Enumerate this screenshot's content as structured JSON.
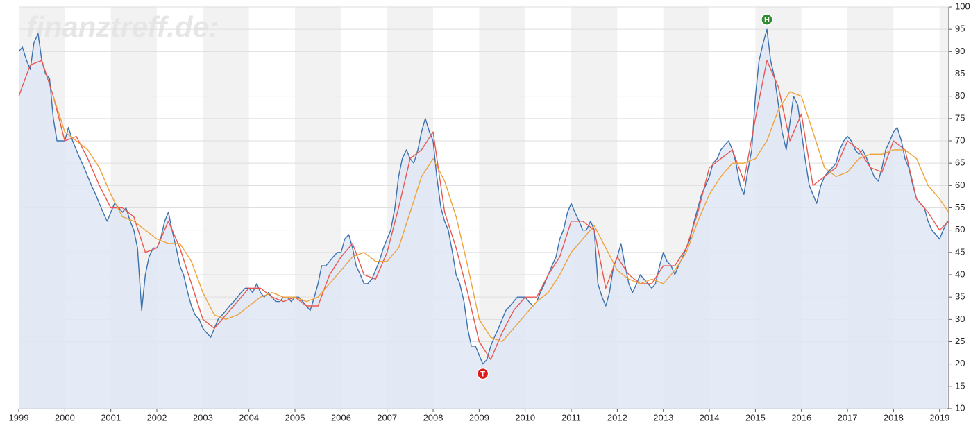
{
  "chart_data": {
    "type": "line",
    "watermark": "finanztreff.de:",
    "xlim": [
      1999,
      2019.2
    ],
    "ylim": [
      10,
      100
    ],
    "xticks": [
      1999,
      2000,
      2001,
      2002,
      2003,
      2004,
      2005,
      2006,
      2007,
      2008,
      2009,
      2010,
      2011,
      2012,
      2013,
      2014,
      2015,
      2016,
      2017,
      2018,
      2019
    ],
    "yticks": [
      10,
      15,
      20,
      25,
      30,
      35,
      40,
      45,
      50,
      55,
      60,
      65,
      70,
      75,
      80,
      85,
      90,
      95,
      100
    ],
    "grid": true,
    "year_bands": true,
    "area_fill": "#dfe8f4",
    "series": [
      {
        "color": "#3b72ad",
        "area": true,
        "x": [
          1999,
          1999.08,
          1999.17,
          1999.25,
          1999.33,
          1999.42,
          1999.5,
          1999.58,
          1999.67,
          1999.75,
          1999.83,
          1999.92,
          2000,
          2000.08,
          2000.17,
          2000.25,
          2000.33,
          2000.42,
          2000.5,
          2000.58,
          2000.67,
          2000.75,
          2000.83,
          2000.92,
          2001,
          2001.08,
          2001.17,
          2001.25,
          2001.33,
          2001.42,
          2001.5,
          2001.58,
          2001.67,
          2001.75,
          2001.83,
          2001.92,
          2002,
          2002.08,
          2002.17,
          2002.25,
          2002.33,
          2002.42,
          2002.5,
          2002.58,
          2002.67,
          2002.75,
          2002.83,
          2002.92,
          2003,
          2003.08,
          2003.17,
          2003.25,
          2003.33,
          2003.42,
          2003.5,
          2003.58,
          2003.67,
          2003.75,
          2003.83,
          2003.92,
          2004,
          2004.08,
          2004.17,
          2004.25,
          2004.33,
          2004.42,
          2004.5,
          2004.58,
          2004.67,
          2004.75,
          2004.83,
          2004.92,
          2005,
          2005.08,
          2005.17,
          2005.25,
          2005.33,
          2005.42,
          2005.5,
          2005.58,
          2005.67,
          2005.75,
          2005.83,
          2005.92,
          2006,
          2006.08,
          2006.17,
          2006.25,
          2006.33,
          2006.42,
          2006.5,
          2006.58,
          2006.67,
          2006.75,
          2006.83,
          2006.92,
          2007,
          2007.08,
          2007.17,
          2007.25,
          2007.33,
          2007.42,
          2007.5,
          2007.58,
          2007.67,
          2007.75,
          2007.83,
          2007.92,
          2008,
          2008.08,
          2008.17,
          2008.25,
          2008.33,
          2008.42,
          2008.5,
          2008.58,
          2008.67,
          2008.75,
          2008.83,
          2008.92,
          2009,
          2009.08,
          2009.17,
          2009.25,
          2009.33,
          2009.42,
          2009.5,
          2009.58,
          2009.67,
          2009.75,
          2009.83,
          2009.92,
          2010,
          2010.08,
          2010.17,
          2010.25,
          2010.33,
          2010.42,
          2010.5,
          2010.58,
          2010.67,
          2010.75,
          2010.83,
          2010.92,
          2011,
          2011.08,
          2011.17,
          2011.25,
          2011.33,
          2011.42,
          2011.5,
          2011.58,
          2011.67,
          2011.75,
          2011.83,
          2011.92,
          2012,
          2012.08,
          2012.17,
          2012.25,
          2012.33,
          2012.42,
          2012.5,
          2012.58,
          2012.67,
          2012.75,
          2012.83,
          2012.92,
          2013,
          2013.08,
          2013.17,
          2013.25,
          2013.33,
          2013.42,
          2013.5,
          2013.58,
          2013.67,
          2013.75,
          2013.83,
          2013.92,
          2014,
          2014.08,
          2014.17,
          2014.25,
          2014.33,
          2014.42,
          2014.5,
          2014.58,
          2014.67,
          2014.75,
          2014.83,
          2014.92,
          2015,
          2015.08,
          2015.17,
          2015.25,
          2015.33,
          2015.42,
          2015.5,
          2015.58,
          2015.67,
          2015.75,
          2015.83,
          2015.92,
          2016,
          2016.08,
          2016.17,
          2016.25,
          2016.33,
          2016.42,
          2016.5,
          2016.58,
          2016.67,
          2016.75,
          2016.83,
          2016.92,
          2017,
          2017.08,
          2017.17,
          2017.25,
          2017.33,
          2017.42,
          2017.5,
          2017.58,
          2017.67,
          2017.75,
          2017.83,
          2017.92,
          2018,
          2018.08,
          2018.17,
          2018.25,
          2018.33,
          2018.42,
          2018.5,
          2018.58,
          2018.67,
          2018.75,
          2018.83,
          2018.92,
          2019,
          2019.08,
          2019.17
        ],
        "values": [
          90,
          91,
          88,
          86,
          92,
          94,
          88,
          85,
          84,
          75,
          70,
          70,
          70,
          73,
          70,
          68,
          66,
          64,
          62,
          60,
          58,
          56,
          54,
          52,
          54,
          56,
          55,
          54,
          55,
          52,
          50,
          46,
          32,
          40,
          44,
          46,
          46,
          48,
          52,
          54,
          50,
          46,
          42,
          40,
          36,
          33,
          31,
          30,
          28,
          27,
          26,
          28,
          30,
          31,
          32,
          33,
          34,
          35,
          36,
          37,
          37,
          36,
          38,
          36,
          35,
          36,
          35,
          34,
          34,
          35,
          35,
          34,
          35,
          35,
          34,
          33,
          32,
          35,
          38,
          42,
          42,
          43,
          44,
          45,
          45,
          48,
          49,
          46,
          42,
          40,
          38,
          38,
          39,
          41,
          43,
          46,
          48,
          50,
          55,
          62,
          66,
          68,
          66,
          65,
          68,
          72,
          75,
          72,
          70,
          62,
          55,
          52,
          50,
          45,
          40,
          38,
          34,
          28,
          24,
          24,
          22,
          20,
          21,
          24,
          26,
          28,
          30,
          32,
          33,
          34,
          35,
          35,
          35,
          34,
          33,
          34,
          36,
          38,
          40,
          42,
          44,
          48,
          50,
          54,
          56,
          54,
          52,
          50,
          50,
          52,
          50,
          38,
          35,
          33,
          36,
          42,
          44,
          47,
          42,
          38,
          36,
          38,
          40,
          39,
          38,
          37,
          38,
          42,
          45,
          43,
          42,
          40,
          42,
          44,
          46,
          48,
          52,
          55,
          58,
          60,
          62,
          65,
          66,
          68,
          69,
          70,
          68,
          65,
          60,
          58,
          63,
          68,
          80,
          88,
          92,
          95,
          88,
          84,
          78,
          72,
          68,
          74,
          80,
          78,
          72,
          66,
          60,
          58,
          56,
          60,
          62,
          63,
          64,
          65,
          68,
          70,
          71,
          70,
          68,
          67,
          68,
          66,
          64,
          62,
          61,
          64,
          68,
          70,
          72,
          73,
          70,
          66,
          64,
          60,
          57,
          56,
          55,
          52,
          50,
          49,
          48,
          50,
          52
        ]
      },
      {
        "color": "#e8574f",
        "x": [
          1999,
          1999.25,
          1999.5,
          1999.75,
          2000,
          2000.25,
          2000.5,
          2000.75,
          2001,
          2001.25,
          2001.5,
          2001.75,
          2002,
          2002.25,
          2002.5,
          2002.75,
          2003,
          2003.25,
          2003.5,
          2003.75,
          2004,
          2004.25,
          2004.5,
          2004.75,
          2005,
          2005.25,
          2005.5,
          2005.75,
          2006,
          2006.25,
          2006.5,
          2006.75,
          2007,
          2007.25,
          2007.5,
          2007.75,
          2008,
          2008.25,
          2008.5,
          2008.75,
          2009,
          2009.25,
          2009.5,
          2009.75,
          2010,
          2010.25,
          2010.5,
          2010.75,
          2011,
          2011.25,
          2011.5,
          2011.75,
          2012,
          2012.25,
          2012.5,
          2012.75,
          2013,
          2013.25,
          2013.5,
          2013.75,
          2014,
          2014.25,
          2014.5,
          2014.75,
          2015,
          2015.25,
          2015.5,
          2015.75,
          2016,
          2016.25,
          2016.5,
          2016.75,
          2017,
          2017.25,
          2017.5,
          2017.75,
          2018,
          2018.25,
          2018.5,
          2018.75,
          2019,
          2019.2
        ],
        "values": [
          80,
          87,
          88,
          80,
          70,
          71,
          66,
          60,
          55,
          55,
          53,
          45,
          46,
          52,
          46,
          38,
          30,
          28,
          31,
          34,
          37,
          37,
          35,
          34,
          35,
          33,
          33,
          40,
          44,
          47,
          40,
          39,
          45,
          55,
          66,
          68,
          72,
          54,
          46,
          36,
          25,
          21,
          27,
          32,
          35,
          35,
          40,
          44,
          52,
          52,
          50,
          37,
          44,
          40,
          38,
          38,
          42,
          42,
          46,
          54,
          64,
          66,
          68,
          61,
          75,
          88,
          82,
          70,
          76,
          60,
          62,
          64,
          70,
          68,
          64,
          63,
          70,
          68,
          57,
          54,
          50,
          52
        ]
      },
      {
        "color": "#f0a23a",
        "x": [
          1999.75,
          2000,
          2000.25,
          2000.5,
          2000.75,
          2001,
          2001.25,
          2001.5,
          2001.75,
          2002,
          2002.25,
          2002.5,
          2002.75,
          2003,
          2003.25,
          2003.5,
          2003.75,
          2004,
          2004.25,
          2004.5,
          2004.75,
          2005,
          2005.25,
          2005.5,
          2005.75,
          2006,
          2006.25,
          2006.5,
          2006.75,
          2007,
          2007.25,
          2007.5,
          2007.75,
          2008,
          2008.25,
          2008.5,
          2008.75,
          2009,
          2009.25,
          2009.5,
          2009.75,
          2010,
          2010.25,
          2010.5,
          2010.75,
          2011,
          2011.25,
          2011.5,
          2011.75,
          2012,
          2012.25,
          2012.5,
          2012.75,
          2013,
          2013.25,
          2013.5,
          2013.75,
          2014,
          2014.25,
          2014.5,
          2014.75,
          2015,
          2015.25,
          2015.5,
          2015.75,
          2016,
          2016.25,
          2016.5,
          2016.75,
          2017,
          2017.25,
          2017.5,
          2017.75,
          2018,
          2018.25,
          2018.5,
          2018.75,
          2019,
          2019.2
        ],
        "values": [
          80,
          72,
          70,
          68,
          64,
          58,
          53,
          52,
          50,
          48,
          47,
          47,
          43,
          36,
          31,
          30,
          31,
          33,
          35,
          36,
          35,
          35,
          34,
          35,
          38,
          41,
          44,
          45,
          43,
          43,
          46,
          54,
          62,
          66,
          61,
          53,
          42,
          30,
          26,
          25,
          28,
          31,
          34,
          36,
          40,
          45,
          48,
          51,
          46,
          41,
          39,
          38,
          39,
          38,
          41,
          45,
          52,
          58,
          62,
          65,
          65,
          66,
          70,
          77,
          81,
          80,
          72,
          64,
          62,
          63,
          66,
          67,
          67,
          68,
          68,
          66,
          60,
          57,
          54
        ]
      }
    ],
    "annotations": [
      {
        "label": "H",
        "x": 2015.25,
        "y": 95,
        "color": "#2e8b2e"
      },
      {
        "label": "T",
        "x": 2009.08,
        "y": 20,
        "color": "#e01b1b"
      }
    ]
  }
}
